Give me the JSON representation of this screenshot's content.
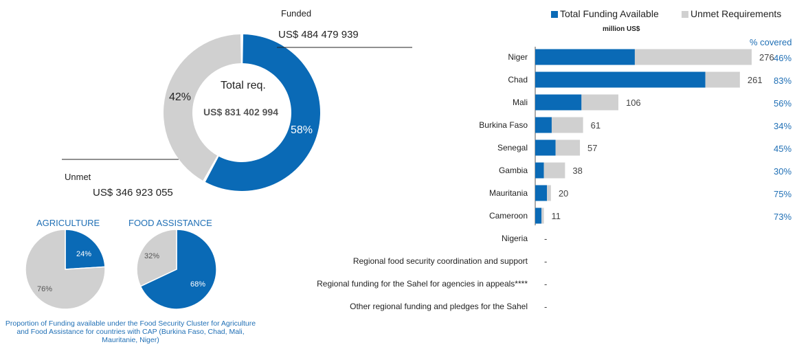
{
  "colors": {
    "funded": "#0a6ab6",
    "unmet": "#d0d0d0",
    "label_blue": "#1f6fb5",
    "text": "#222222"
  },
  "chart_data": [
    {
      "type": "pie",
      "variant": "donut",
      "center": {
        "label": "Total req.",
        "amount": "US$ 831 402 994"
      },
      "slices": [
        {
          "name": "Funded",
          "amount": "US$ 484 479 939",
          "value": 58,
          "pct_label": "58%"
        },
        {
          "name": "Unmet",
          "amount": "US$ 346 923 055",
          "value": 42,
          "pct_label": "42%"
        }
      ]
    },
    {
      "type": "pie",
      "title": "AGRICULTURE",
      "slices": [
        {
          "value": 24,
          "pct_label": "24%",
          "kind": "funded"
        },
        {
          "value": 76,
          "pct_label": "76%",
          "kind": "unmet"
        }
      ]
    },
    {
      "type": "pie",
      "title": "FOOD ASSISTANCE",
      "slices": [
        {
          "value": 68,
          "pct_label": "68%",
          "kind": "funded"
        },
        {
          "value": 32,
          "pct_label": "32%",
          "kind": "unmet"
        }
      ]
    },
    {
      "type": "bar",
      "orientation": "horizontal",
      "stacked": true,
      "subtitle": "million US$",
      "legend": [
        "Total Funding Available",
        "Unmet Requirements"
      ],
      "pct_header": "% covered",
      "xlim": [
        0,
        276
      ],
      "categories": [
        "Niger",
        "Chad",
        "Mali",
        "Burkina Faso",
        "Senegal",
        "Gambia",
        "Mauritania",
        "Cameroon",
        "Nigeria",
        "Regional food security coordination and support",
        "Regional funding for the Sahel for agencies in appeals****",
        "Other regional funding and pledges for the Sahel"
      ],
      "totals": [
        276,
        261,
        106,
        61,
        57,
        38,
        20,
        11,
        null,
        null,
        null,
        null
      ],
      "total_labels": [
        "276",
        "261",
        "106",
        "61",
        "57",
        "38",
        "20",
        "11",
        "-",
        "-",
        "-",
        "-"
      ],
      "coverage": [
        "46%",
        "83%",
        "56%",
        "34%",
        "45%",
        "30%",
        "75%",
        "73%",
        null,
        null,
        null,
        null
      ],
      "series": [
        {
          "name": "Total Funding Available",
          "values": [
            127,
            217,
            59,
            21,
            26,
            11,
            15,
            8,
            0,
            0,
            0,
            0
          ]
        },
        {
          "name": "Unmet Requirements",
          "values": [
            149,
            44,
            47,
            40,
            31,
            27,
            5,
            3,
            0,
            0,
            0,
            0
          ]
        }
      ]
    }
  ],
  "footnote": "Proportion of Funding available under the Food Security Cluster for Agriculture and Food Assistance for countries with CAP (Burkina Faso, Chad, Mali, Mauritanie, Niger)"
}
